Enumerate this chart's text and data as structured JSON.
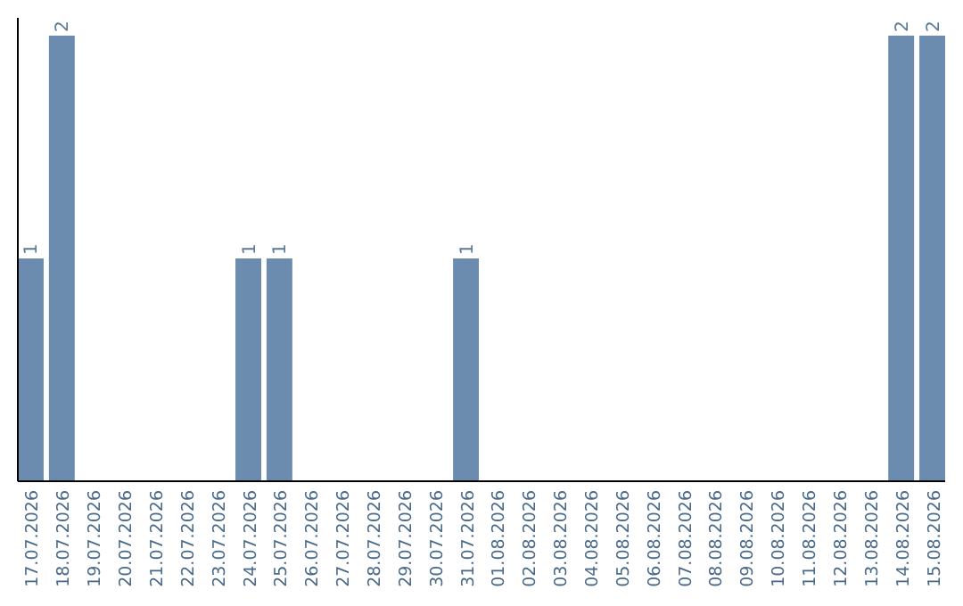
{
  "chart_data": {
    "type": "bar",
    "categories": [
      "17.07.2026",
      "18.07.2026",
      "19.07.2026",
      "20.07.2026",
      "21.07.2026",
      "22.07.2026",
      "23.07.2026",
      "24.07.2026",
      "25.07.2026",
      "26.07.2026",
      "27.07.2026",
      "28.07.2026",
      "29.07.2026",
      "30.07.2026",
      "31.07.2026",
      "01.08.2026",
      "02.08.2026",
      "03.08.2026",
      "04.08.2026",
      "05.08.2026",
      "06.08.2026",
      "07.08.2026",
      "08.08.2026",
      "09.08.2026",
      "10.08.2026",
      "11.08.2026",
      "12.08.2026",
      "13.08.2026",
      "14.08.2026",
      "15.08.2026"
    ],
    "values": [
      1,
      2,
      0,
      0,
      0,
      0,
      0,
      1,
      1,
      0,
      0,
      0,
      0,
      0,
      1,
      0,
      0,
      0,
      0,
      0,
      0,
      0,
      0,
      0,
      0,
      0,
      0,
      0,
      2,
      2
    ],
    "value_labels": [
      "1",
      "2",
      null,
      null,
      null,
      null,
      null,
      "1",
      "1",
      null,
      null,
      null,
      null,
      null,
      "1",
      null,
      null,
      null,
      null,
      null,
      null,
      null,
      null,
      null,
      null,
      null,
      null,
      null,
      "2",
      "2"
    ],
    "color": "#6b8cae",
    "ylim": [
      0,
      2.08
    ],
    "tick_labels": "x"
  }
}
